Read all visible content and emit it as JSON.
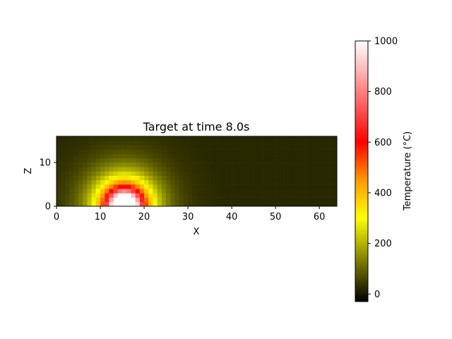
{
  "chart_data": {
    "type": "heatmap",
    "title": "Target at time 8.0s",
    "xlabel": "X",
    "ylabel": "Z",
    "xlim": [
      0,
      64
    ],
    "ylim": [
      0,
      16
    ],
    "x_ticks": [
      0,
      10,
      20,
      30,
      40,
      50,
      60
    ],
    "y_ticks": [
      0,
      10
    ],
    "grid": false,
    "grid_size": {
      "nx": 64,
      "nz": 16
    },
    "field": {
      "ambient": 20,
      "source_center": [
        15.5,
        0
      ],
      "core_radius": 3.0,
      "peak_temperature": 1000,
      "radial_falloff_scale": 3.3,
      "description_of_values": "temperature in °C per cell, peak ~1000 at center-bottom x≈15.5, falling off radially to ~20 ambient"
    },
    "colorbar": {
      "label": "Temperature (°C)",
      "min": -30,
      "max": 1000,
      "ticks": [
        0,
        200,
        400,
        600,
        800,
        1000
      ],
      "colormap": [
        [
          -30,
          "#000000"
        ],
        [
          200,
          "#b3b300"
        ],
        [
          300,
          "#ffff00"
        ],
        [
          450,
          "#ff9900"
        ],
        [
          600,
          "#ff0000"
        ],
        [
          800,
          "#ff8080"
        ],
        [
          1000,
          "#ffffff"
        ]
      ]
    }
  }
}
